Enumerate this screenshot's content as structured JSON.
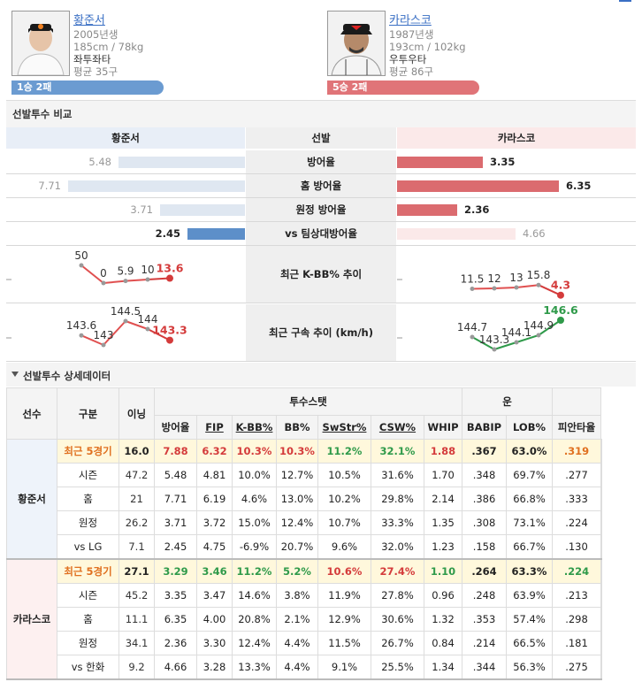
{
  "players": [
    {
      "name": "황준서",
      "born": "2005년생",
      "body": "185cm / 78kg",
      "hand": "좌투좌타",
      "avg": "평균 35구",
      "record": "1승 2패",
      "color": "#6b9bd1"
    },
    {
      "name": "카라스코",
      "born": "1987년생",
      "body": "193cm / 102kg",
      "hand": "우투우타",
      "avg": "평균 86구",
      "record": "5승 2패",
      "color": "#e07478"
    }
  ],
  "compare": {
    "title": "선발투수 비교",
    "header": {
      "left": "황준서",
      "mid": "선발",
      "right": "카라스코"
    },
    "rows": [
      {
        "label": "방어율",
        "left": "5.48",
        "right": "3.35",
        "left_ratio": 0.55,
        "right_ratio": 0.53
      },
      {
        "label": "홈 방어율",
        "left": "7.71",
        "right": "6.35",
        "left_ratio": 0.77,
        "right_ratio": 1.0
      },
      {
        "label": "원정 방어율",
        "left": "3.71",
        "right": "2.36",
        "left_ratio": 0.37,
        "right_ratio": 0.37
      },
      {
        "label": "vs 팀상대방어율",
        "left": "2.45",
        "right": "4.66",
        "left_ratio": 0.25,
        "right_ratio": 0.73
      }
    ],
    "kbb": {
      "label": "최근 K-BB% 추이",
      "left": [
        "50",
        "0",
        "5.9",
        "10",
        "13.6"
      ],
      "right": [
        "11.5",
        "12",
        "13",
        "15.8",
        "4.3"
      ]
    },
    "velo": {
      "label": "최근 구속 추이 (km/h)",
      "left": [
        "143.6",
        "143",
        "144.5",
        "144",
        "143.3"
      ],
      "right": [
        "144.7",
        "143.3",
        "144.1",
        "144.9",
        "146.6"
      ]
    }
  },
  "detail": {
    "title": "선발투수 상세데이터",
    "toggle_icon": "triangle-down-icon",
    "headers": {
      "player": "선수",
      "type": "구분",
      "ip": "이닝",
      "group1": "투수스탯",
      "group2": "운",
      "cols": [
        "방어율",
        "FIP",
        "K-BB%",
        "BB%",
        "SwStr%",
        "CSW%",
        "WHIP",
        "BABIP",
        "LOB%",
        "피안타율"
      ]
    },
    "players": [
      {
        "name": "황준서",
        "rows": [
          {
            "type": "최근 5경기",
            "vals": [
              "16.0",
              "7.88",
              "6.32",
              "10.3%",
              "10.3%",
              "11.2%",
              "32.1%",
              "1.88",
              ".367",
              "63.0%",
              ".319"
            ]
          },
          {
            "type": "시즌",
            "vals": [
              "47.2",
              "5.48",
              "4.81",
              "10.0%",
              "12.7%",
              "10.5%",
              "31.6%",
              "1.70",
              ".348",
              "69.7%",
              ".277"
            ]
          },
          {
            "type": "홈",
            "vals": [
              "21",
              "7.71",
              "6.19",
              "4.6%",
              "13.0%",
              "10.2%",
              "29.8%",
              "2.14",
              ".386",
              "66.8%",
              ".333"
            ]
          },
          {
            "type": "원정",
            "vals": [
              "26.2",
              "3.71",
              "3.72",
              "15.0%",
              "12.4%",
              "10.7%",
              "33.3%",
              "1.35",
              ".308",
              "73.1%",
              ".224"
            ]
          },
          {
            "type": "vs LG",
            "vals": [
              "7.1",
              "2.45",
              "4.75",
              "-6.9%",
              "20.7%",
              "9.6%",
              "32.0%",
              "1.23",
              ".158",
              "66.7%",
              ".130"
            ]
          }
        ]
      },
      {
        "name": "카라스코",
        "rows": [
          {
            "type": "최근 5경기",
            "vals": [
              "27.1",
              "3.29",
              "3.46",
              "11.2%",
              "5.2%",
              "10.6%",
              "27.4%",
              "1.10",
              ".264",
              "63.3%",
              ".224"
            ]
          },
          {
            "type": "시즌",
            "vals": [
              "45.2",
              "3.35",
              "3.47",
              "14.6%",
              "3.8%",
              "11.9%",
              "27.8%",
              "0.96",
              ".248",
              "63.9%",
              ".213"
            ]
          },
          {
            "type": "홈",
            "vals": [
              "11.1",
              "6.35",
              "4.00",
              "20.8%",
              "2.1%",
              "12.9%",
              "30.6%",
              "1.32",
              ".353",
              "57.4%",
              ".298"
            ]
          },
          {
            "type": "원정",
            "vals": [
              "34.1",
              "2.36",
              "3.30",
              "12.4%",
              "4.4%",
              "11.5%",
              "26.7%",
              "0.84",
              ".214",
              "66.5%",
              ".181"
            ]
          },
          {
            "type": "vs 한화",
            "vals": [
              "9.2",
              "4.66",
              "3.28",
              "13.3%",
              "4.4%",
              "9.1%",
              "25.5%",
              "1.34",
              ".344",
              "56.3%",
              ".275"
            ]
          }
        ]
      }
    ],
    "hl_styles": [
      [
        "blk",
        "red",
        "red",
        "red",
        "red",
        "grn",
        "grn",
        "red",
        "blk",
        "blk",
        "org"
      ],
      [
        "blk",
        "grn",
        "grn",
        "grn",
        "grn",
        "red",
        "red",
        "grn",
        "blk",
        "blk",
        "grn"
      ]
    ]
  }
}
